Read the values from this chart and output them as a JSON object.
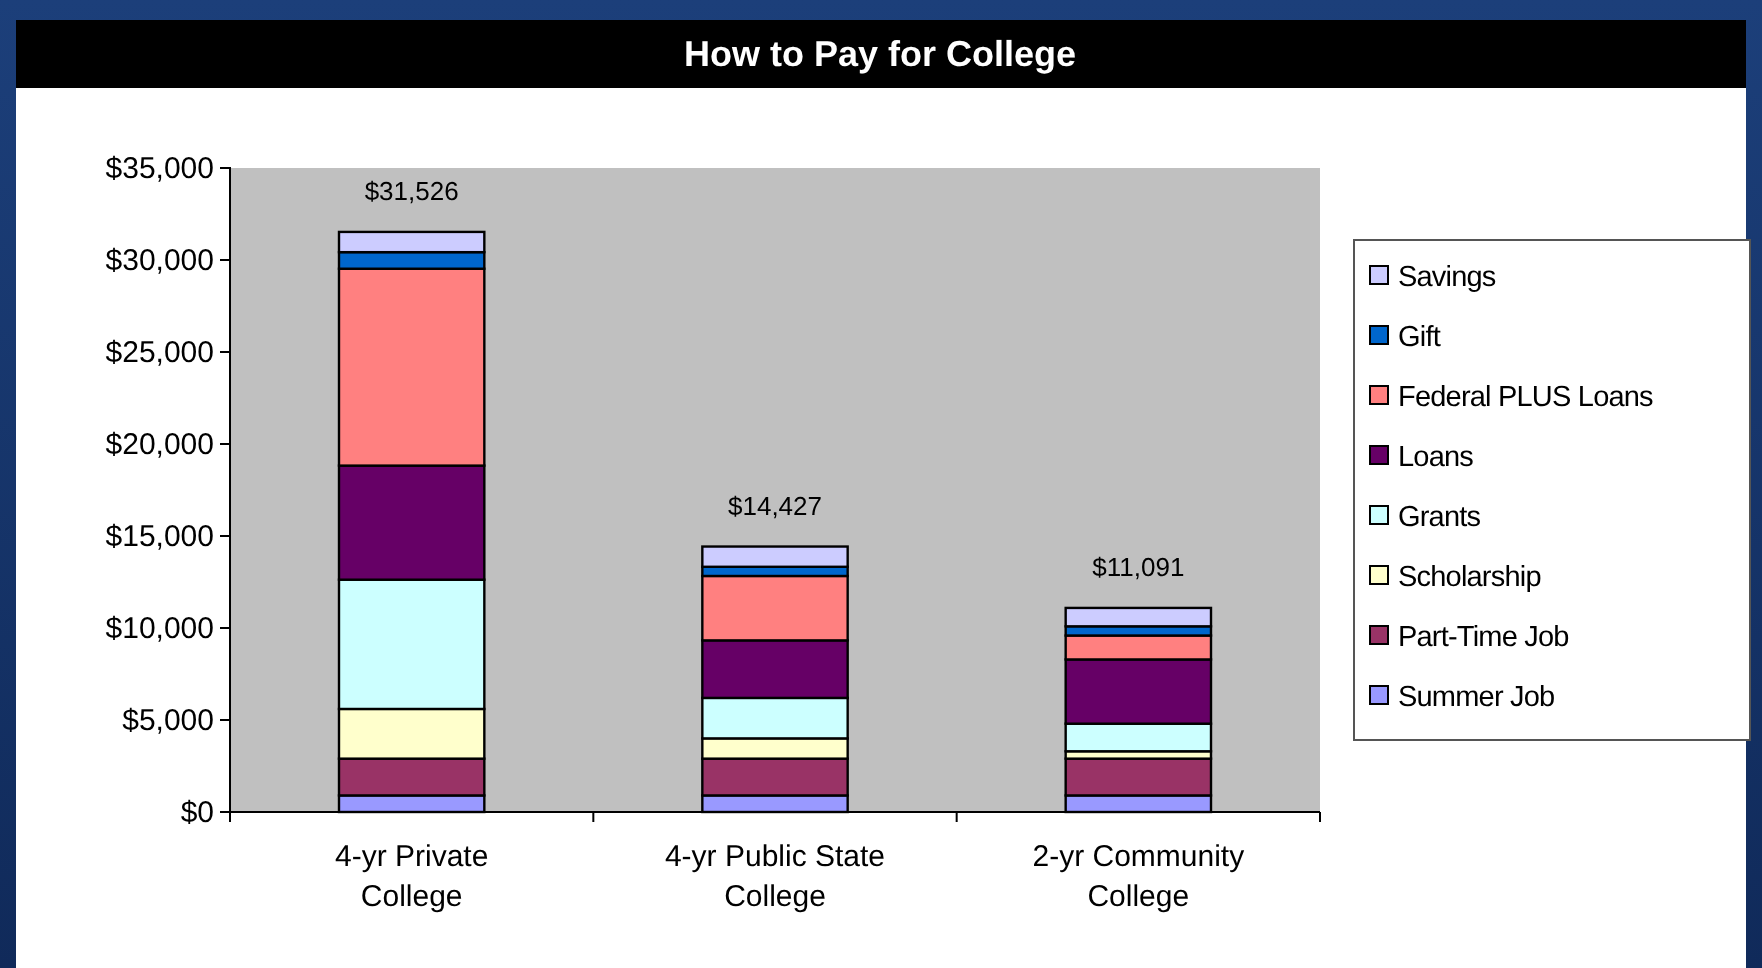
{
  "chart_data": {
    "type": "bar",
    "title": "How to Pay for College",
    "stacked": true,
    "legend": "right",
    "grid": false,
    "categories": [
      "4-yr Private College",
      "4-yr Public State College",
      "2-yr Community College"
    ],
    "series": [
      {
        "name": "Summer Job",
        "color": "#9999ff",
        "values": [
          900,
          900,
          900
        ]
      },
      {
        "name": "Part-Time Job",
        "color": "#993366",
        "values": [
          2000,
          2000,
          2000
        ]
      },
      {
        "name": "Scholarship",
        "color": "#ffffcc",
        "values": [
          2700,
          1100,
          400
        ]
      },
      {
        "name": "Grants",
        "color": "#ccffff",
        "values": [
          7026,
          2200,
          1500
        ]
      },
      {
        "name": "Loans",
        "color": "#660066",
        "values": [
          6200,
          3127,
          3491
        ]
      },
      {
        "name": "Federal PLUS Loans",
        "color": "#ff8080",
        "values": [
          10700,
          3500,
          1300
        ]
      },
      {
        "name": "Gift",
        "color": "#0066cc",
        "values": [
          900,
          500,
          500
        ]
      },
      {
        "name": "Savings",
        "color": "#ccccff",
        "values": [
          1100,
          1100,
          1000
        ]
      }
    ],
    "totals": [
      "$31,526",
      "$14,427",
      "$11,091"
    ],
    "ylim": [
      0,
      35000
    ],
    "yticks": [
      {
        "value": 0,
        "label": "$0"
      },
      {
        "value": 5000,
        "label": "$5,000"
      },
      {
        "value": 10000,
        "label": "$10,000"
      },
      {
        "value": 15000,
        "label": "$15,000"
      },
      {
        "value": 20000,
        "label": "$20,000"
      },
      {
        "value": 25000,
        "label": "$25,000"
      },
      {
        "value": 30000,
        "label": "$30,000"
      },
      {
        "value": 35000,
        "label": "$35,000"
      }
    ]
  }
}
